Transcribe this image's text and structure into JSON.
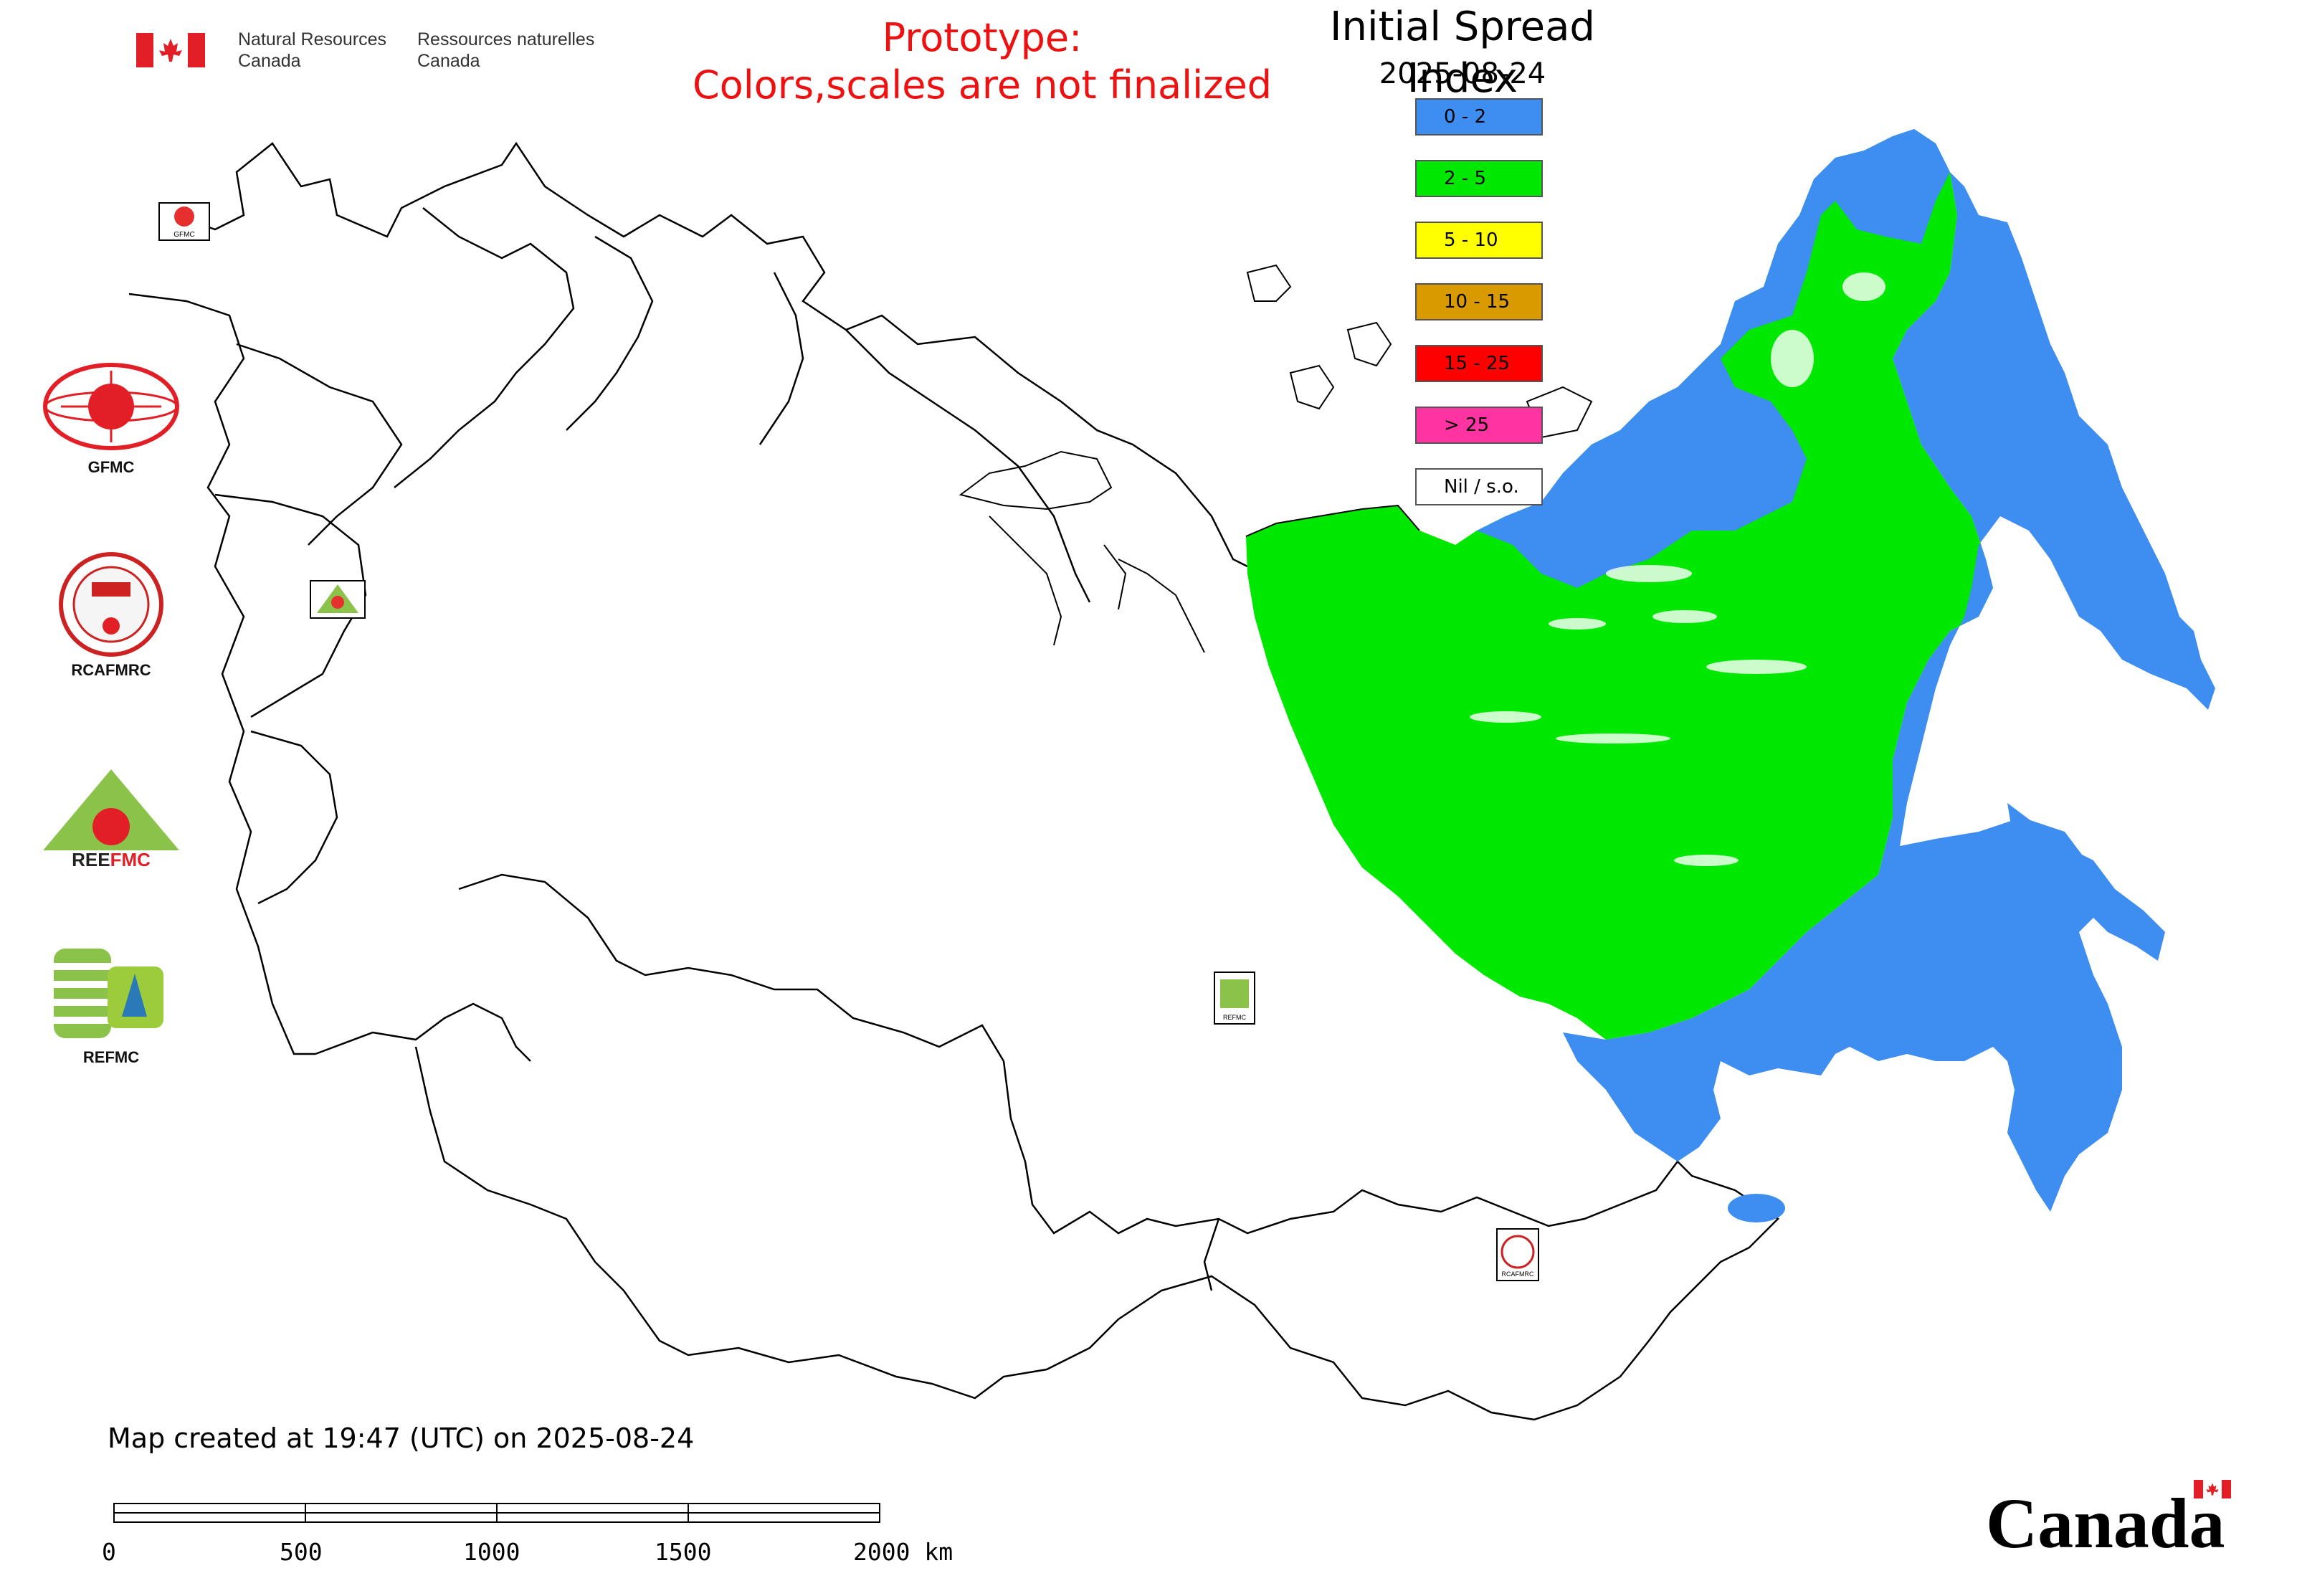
{
  "header": {
    "nrcan_en": "Natural Resources\nCanada",
    "nrcan_fr": "Ressources naturelles\nCanada",
    "prototype_line1": "Prototype:",
    "prototype_line2": "Colors,scales are not finalized",
    "title": "Initial Spread Index",
    "date": "2025-08-24"
  },
  "legend": [
    {
      "label": "0 - 2",
      "color": "#3d8ef0"
    },
    {
      "label": "2 - 5",
      "color": "#00e800"
    },
    {
      "label": "5 - 10",
      "color": "#ffff00"
    },
    {
      "label": "10 - 15",
      "color": "#d99a00"
    },
    {
      "label": "15 - 25",
      "color": "#ff0000"
    },
    {
      "label": "> 25",
      "color": "#ff33a1"
    },
    {
      "label": "Nil / s.o.",
      "color": "#ffffff"
    }
  ],
  "agencies": [
    {
      "name": "GFMC",
      "icon": "gfmc-logo-icon"
    },
    {
      "name": "RCAFMRC",
      "icon": "rcafmrc-logo-icon"
    },
    {
      "name": "REEFMC",
      "icon": "reefmc-logo-icon"
    },
    {
      "name": "REFMC",
      "icon": "refmc-logo-icon"
    }
  ],
  "map": {
    "region_colors": {
      "low": "#3d8ef0",
      "moderate": "#00e800",
      "outline": "#000000"
    }
  },
  "footer": {
    "created": "Map created at 19:47 (UTC) on 2025-08-24",
    "scale_labels": [
      "0",
      "500",
      "1000",
      "1500",
      "2000 km"
    ],
    "wordmark": "Canada"
  }
}
